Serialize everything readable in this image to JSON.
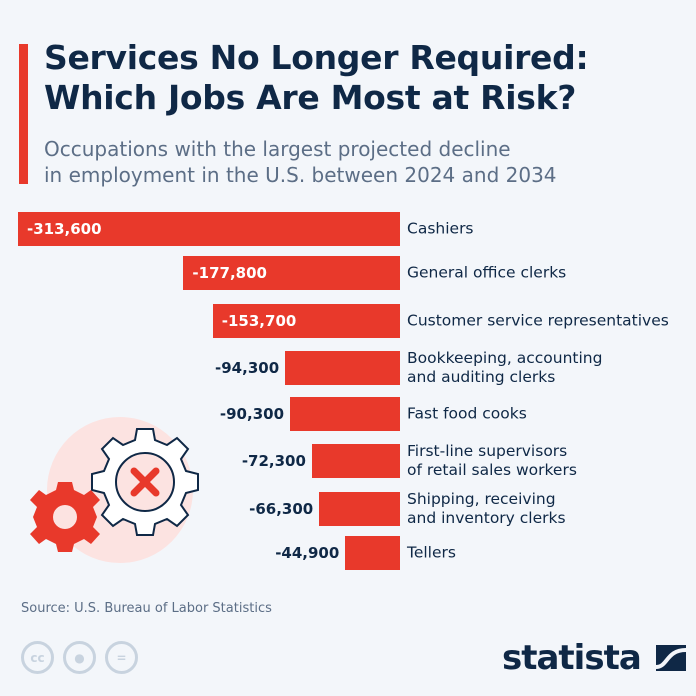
{
  "title_line1": "Services No Longer Required:",
  "title_line2": "Which Jobs Are Most at Risk?",
  "subtitle_line1": "Occupations with the largest projected decline",
  "subtitle_line2": "in employment in the U.S. between 2024 and 2034",
  "source": "Source: U.S. Bureau of Labor Statistics",
  "brand": "statista",
  "colors": {
    "bar": "#e8392b",
    "text": "#0f2846",
    "background": "#f3f6fa"
  },
  "license_icons": [
    "cc",
    "by",
    "nd"
  ],
  "chart_data": {
    "type": "bar",
    "orientation": "horizontal",
    "title": "Services No Longer Required: Which Jobs Are Most at Risk?",
    "categories": [
      "Cashiers",
      "General office clerks",
      "Customer service representatives",
      "Bookkeeping, accounting\nand auditing clerks",
      "Fast food cooks",
      "First-line supervisors\nof retail sales workers",
      "Shipping, receiving\nand inventory clerks",
      "Tellers"
    ],
    "values": [
      -313600,
      -177800,
      -153700,
      -94300,
      -90300,
      -72300,
      -66300,
      -44900
    ],
    "value_labels": [
      "-313,600",
      "-177,800",
      "-153,700",
      "-94,300",
      "-90,300",
      "-72,300",
      "-66,300",
      "-44,900"
    ],
    "grid": false
  }
}
